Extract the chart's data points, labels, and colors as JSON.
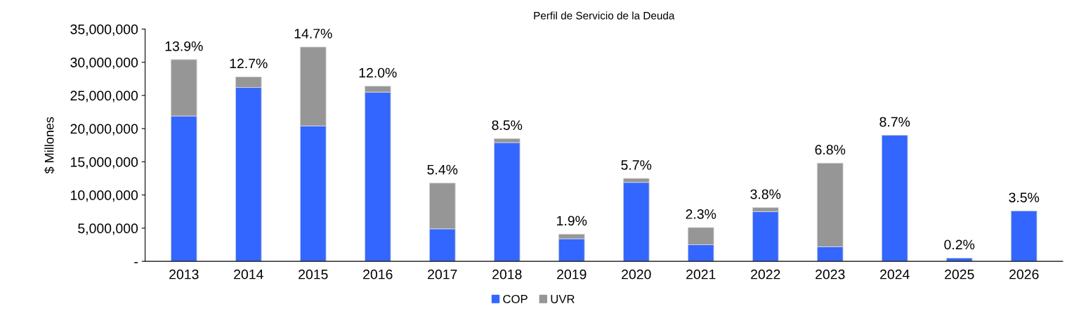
{
  "chart_data": {
    "type": "bar",
    "title": "Perfil de Servicio de la Deuda",
    "ylabel": "$ Millones",
    "categories": [
      "2013",
      "2014",
      "2015",
      "2016",
      "2017",
      "2018",
      "2019",
      "2020",
      "2021",
      "2022",
      "2023",
      "2024",
      "2025",
      "2026"
    ],
    "stacked": true,
    "series": [
      {
        "name": "COP",
        "color": "#3366ff",
        "values": [
          21900000,
          26200000,
          20400000,
          25500000,
          4900000,
          17900000,
          3400000,
          11900000,
          2500000,
          7500000,
          2200000,
          19000000,
          500000,
          7600000
        ]
      },
      {
        "name": "UVR",
        "color": "#969696",
        "values": [
          8500000,
          1600000,
          11900000,
          900000,
          6900000,
          600000,
          700000,
          600000,
          2600000,
          600000,
          12600000,
          null,
          null,
          null
        ]
      }
    ],
    "ylim": [
      0,
      35000000
    ],
    "yticks": [
      {
        "value": 0,
        "label": "-"
      },
      {
        "value": 5000000,
        "label": "5,000,000"
      },
      {
        "value": 10000000,
        "label": "10,000,000"
      },
      {
        "value": 15000000,
        "label": "15,000,000"
      },
      {
        "value": 20000000,
        "label": "20,000,000"
      },
      {
        "value": 25000000,
        "label": "25,000,000"
      },
      {
        "value": 30000000,
        "label": "30,000,000"
      },
      {
        "value": 35000000,
        "label": "35,000,000"
      }
    ],
    "annotations": [
      {
        "text": "13.9%",
        "x": "2013",
        "y": 30400000
      },
      {
        "text": "12.7%",
        "x": "2014",
        "y": 27800000
      },
      {
        "text": "14.7%",
        "x": "2015",
        "y": 32300000
      },
      {
        "text": "12.0%",
        "x": "2016",
        "y": 26400000
      },
      {
        "text": "5.4%",
        "x": "2017",
        "y": 11800000
      },
      {
        "text": "8.5%",
        "x": "2018",
        "y": 18500000
      },
      {
        "text": "1.9%",
        "x": "2019",
        "y": 4100000
      },
      {
        "text": "5.7%",
        "x": "2020",
        "y": 12500000
      },
      {
        "text": "2.3%",
        "x": "2021",
        "y": 5100000
      },
      {
        "text": "3.8%",
        "x": "2022",
        "y": 8100000
      },
      {
        "text": "6.8%",
        "x": "2023",
        "y": 14800000
      },
      {
        "text": "8.7%",
        "x": "2024",
        "y": 19000000
      },
      {
        "text": "0.2%",
        "x": "2025",
        "y": 500000
      },
      {
        "text": "3.5%",
        "x": "2026",
        "y": 7600000
      }
    ],
    "grid": false,
    "legend": "bottom"
  }
}
